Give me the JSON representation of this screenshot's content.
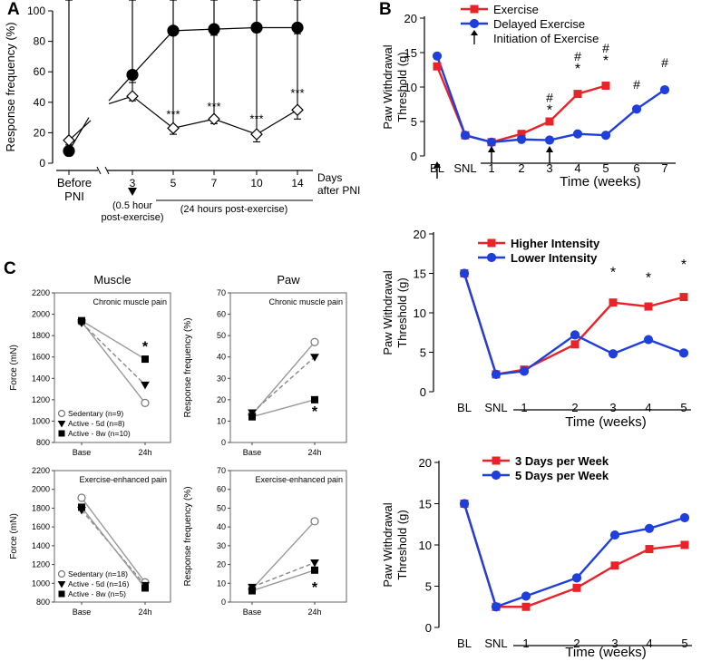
{
  "panels": {
    "A": "A",
    "B": "B",
    "C": "C"
  },
  "chart_data": [
    {
      "id": "A",
      "type": "line",
      "ylabel": "Response frequency (%)",
      "ylim": [
        0,
        100
      ],
      "yticks": [
        0,
        20,
        40,
        60,
        80,
        100
      ],
      "categories": [
        "Before PNI",
        "3",
        "5",
        "7",
        "10",
        "14"
      ],
      "xlabel_extra": "Days after PNI",
      "annotations": {
        "note3": "(0.5 hour post-exercise)",
        "note_rest": "(24 hours post-exercise)",
        "sig": "***"
      },
      "series": [
        {
          "name": "circle",
          "values": [
            8,
            58,
            87,
            88,
            89,
            89
          ],
          "err": [
            3,
            5,
            3,
            4,
            3,
            4
          ]
        },
        {
          "name": "diamond",
          "values": [
            15,
            44,
            23,
            29,
            19,
            35
          ],
          "err": [
            3,
            3,
            4,
            3,
            5,
            6
          ]
        }
      ],
      "significance": [
        "",
        "",
        "***",
        "***",
        "***",
        "***"
      ]
    },
    {
      "id": "B1",
      "type": "line",
      "ylabel": "Paw Withdrawal Threshold (g)",
      "ylim": [
        0,
        20
      ],
      "yticks": [
        0,
        5,
        10,
        15,
        20
      ],
      "categories": [
        "BL",
        "SNL",
        "1",
        "2",
        "3",
        "4",
        "5",
        "6",
        "7"
      ],
      "xlabel": "Time (weeks)",
      "legend": [
        "Exercise",
        "Delayed Exercise",
        "Initiation of Exercise"
      ],
      "series": [
        {
          "name": "Exercise",
          "color": "#e8232a",
          "values": [
            13,
            3,
            2,
            3.2,
            5,
            9,
            10.2,
            null,
            null
          ],
          "err": [
            2,
            0.5,
            0.5,
            1.2,
            1.5,
            3.5,
            3.5,
            null,
            null
          ]
        },
        {
          "name": "Delayed Exercise",
          "color": "#1f3fdc",
          "values": [
            14.5,
            3,
            2,
            2.4,
            2.3,
            3.2,
            3,
            6.8,
            9.6
          ],
          "err": [
            0.7,
            0.5,
            0.5,
            0.5,
            0.4,
            0.6,
            0.6,
            2.4,
            2.8
          ]
        }
      ],
      "sig_star": [
        "",
        "",
        "",
        "",
        "*",
        "*",
        "*",
        "",
        ""
      ],
      "sig_hash": [
        "",
        "",
        "",
        "",
        "#",
        "#",
        "#",
        "#",
        "#"
      ],
      "arrows_at": [
        "BL",
        "1",
        "3"
      ]
    },
    {
      "id": "B2",
      "type": "line",
      "ylabel": "Paw Withdrawal Threshold (g)",
      "ylim": [
        0,
        20
      ],
      "yticks": [
        0,
        5,
        10,
        15,
        20
      ],
      "categories": [
        "BL",
        "SNL",
        "1",
        "2",
        "3",
        "4",
        "5"
      ],
      "xlabel": "Time (weeks)",
      "legend": [
        "Higher Intensity",
        "Lower Intensity"
      ],
      "series": [
        {
          "name": "Higher Intensity",
          "color": "#e8232a",
          "values": [
            15,
            2.2,
            2.8,
            6,
            11.3,
            10.8,
            12
          ],
          "err": [
            0.3,
            0.6,
            0.6,
            3,
            3,
            2.8,
            3.3
          ]
        },
        {
          "name": "Lower Intensity",
          "color": "#1f3fdc",
          "values": [
            15,
            2.2,
            2.6,
            7.2,
            4.8,
            6.6,
            4.9
          ],
          "err": [
            0.3,
            0.6,
            0.6,
            4.8,
            3.5,
            4.3,
            3.6
          ]
        }
      ],
      "sig_star": [
        "",
        "",
        "",
        "",
        "*",
        "*",
        "*"
      ]
    },
    {
      "id": "B3",
      "type": "line",
      "ylabel": "Paw Withdrawal Threshold (g)",
      "ylim": [
        0,
        20
      ],
      "yticks": [
        0,
        5,
        10,
        15,
        20
      ],
      "categories": [
        "BL",
        "SNL",
        "1",
        "2",
        "3",
        "4",
        "5"
      ],
      "xlabel": "Time (weeks)",
      "legend": [
        "3 Days per Week",
        "5 Days per Week"
      ],
      "series": [
        {
          "name": "3 Days per Week",
          "color": "#e8232a",
          "values": [
            15,
            2.5,
            2.5,
            4.8,
            7.5,
            9.5,
            10
          ],
          "err": [
            0.3,
            0.5,
            0.8,
            1.2,
            3.5,
            5,
            4.5
          ]
        },
        {
          "name": "5 Days per Week",
          "color": "#1f3fdc",
          "values": [
            15,
            2.5,
            3.8,
            6,
            11.2,
            12,
            13.3
          ],
          "err": [
            0.3,
            0.5,
            1.6,
            1.3,
            3.2,
            3,
            2.2
          ]
        }
      ]
    },
    {
      "id": "C1",
      "type": "line",
      "column_title": "Muscle",
      "subtitle": "Chronic muscle pain",
      "ylabel": "Force (mN)",
      "ylim": [
        800,
        2200
      ],
      "yticks": [
        800,
        1000,
        1200,
        1400,
        1600,
        1800,
        2000,
        2200
      ],
      "categories": [
        "Base",
        "24h"
      ],
      "legend": [
        "Sedentary (n=9)",
        "Active - 5d (n=8)",
        "Active - 8w (n=10)"
      ],
      "series": [
        {
          "name": "Sedentary (n=9)",
          "values": [
            1930,
            1170
          ],
          "err": [
            20,
            30
          ]
        },
        {
          "name": "Active - 5d (n=8)",
          "values": [
            1920,
            1340
          ],
          "err": [
            20,
            100
          ]
        },
        {
          "name": "Active - 8w (n=10)",
          "values": [
            1940,
            1580
          ],
          "err": [
            20,
            40
          ]
        }
      ],
      "sig": "*"
    },
    {
      "id": "C2",
      "type": "line",
      "column_title": "Paw",
      "subtitle": "Chronic muscle pain",
      "ylabel": "Response frequency (%)",
      "ylim": [
        0,
        70
      ],
      "yticks": [
        0,
        10,
        20,
        30,
        40,
        50,
        60,
        70
      ],
      "categories": [
        "Base",
        "24h"
      ],
      "series": [
        {
          "name": "Sedentary (n=9)",
          "values": [
            13,
            47
          ],
          "err": [
            4,
            4
          ]
        },
        {
          "name": "Active - 5d (n=8)",
          "values": [
            14,
            40
          ],
          "err": [
            4,
            3
          ]
        },
        {
          "name": "Active - 8w (n=10)",
          "values": [
            12,
            20
          ],
          "err": [
            2,
            1
          ]
        }
      ],
      "sig": "*"
    },
    {
      "id": "C3",
      "type": "line",
      "subtitle": "Exercise-enhanced pain",
      "ylabel": "Force (mN)",
      "ylim": [
        800,
        2200
      ],
      "yticks": [
        800,
        1000,
        1200,
        1400,
        1600,
        1800,
        2000,
        2200
      ],
      "categories": [
        "Base",
        "24h"
      ],
      "legend": [
        "Sedentary (n=18)",
        "Active - 5d (n=16)",
        "Active - 8w (n=5)"
      ],
      "series": [
        {
          "name": "Sedentary (n=18)",
          "values": [
            1910,
            1010
          ],
          "err": [
            25,
            35
          ]
        },
        {
          "name": "Active - 5d (n=16)",
          "values": [
            1780,
            980
          ],
          "err": [
            50,
            40
          ]
        },
        {
          "name": "Active - 8w (n=5)",
          "values": [
            1810,
            950
          ],
          "err": [
            40,
            30
          ]
        }
      ]
    },
    {
      "id": "C4",
      "type": "line",
      "subtitle": "Exercise-enhanced pain",
      "ylabel": "Response frequency (%)",
      "ylim": [
        0,
        70
      ],
      "yticks": [
        0,
        10,
        20,
        30,
        40,
        50,
        60,
        70
      ],
      "categories": [
        "Base",
        "24h"
      ],
      "series": [
        {
          "name": "Sedentary (n=18)",
          "values": [
            7,
            43
          ],
          "err": [
            2,
            7
          ]
        },
        {
          "name": "Active - 5d (n=16)",
          "values": [
            8,
            21
          ],
          "err": [
            3,
            3
          ]
        },
        {
          "name": "Active - 8w (n=5)",
          "values": [
            6,
            17
          ],
          "err": [
            3,
            4
          ]
        }
      ],
      "sig": "*"
    }
  ]
}
